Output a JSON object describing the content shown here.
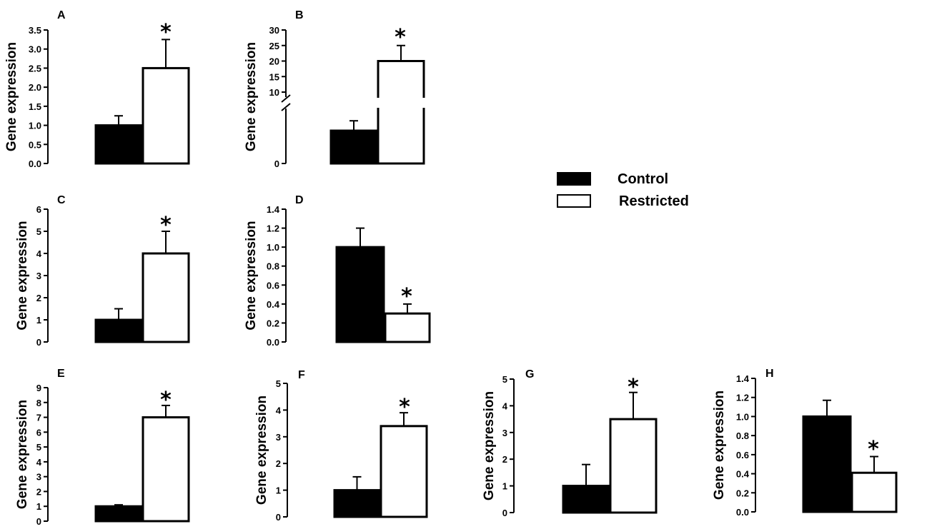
{
  "chart_data": [
    {
      "panel": "A",
      "type": "bar",
      "ylabel": "Gene expression",
      "categories": [
        "Control",
        "Restricted"
      ],
      "values": [
        1.0,
        2.5
      ],
      "errors": [
        0.25,
        0.75
      ],
      "ylim": [
        0,
        3.5
      ],
      "ticks": [
        "0.0",
        "0.5",
        "1.0",
        "1.5",
        "2.0",
        "2.5",
        "3.0",
        "3.5"
      ],
      "significance": "*"
    },
    {
      "panel": "B",
      "type": "bar",
      "ylabel": "Gene expression",
      "categories": [
        "Control",
        "Restricted"
      ],
      "values": [
        1.0,
        20
      ],
      "errors": [
        0.3,
        5
      ],
      "axis_break": true,
      "ticks": [
        "0",
        "10",
        "15",
        "20",
        "25",
        "30"
      ],
      "significance": "*"
    },
    {
      "panel": "C",
      "type": "bar",
      "ylabel": "Gene expression",
      "categories": [
        "Control",
        "Restricted"
      ],
      "values": [
        1.0,
        4.0
      ],
      "errors": [
        0.5,
        1.0
      ],
      "ylim": [
        0,
        6
      ],
      "ticks": [
        "0",
        "1",
        "2",
        "3",
        "4",
        "5",
        "6"
      ],
      "significance": "*"
    },
    {
      "panel": "D",
      "type": "bar",
      "ylabel": "Gene expression",
      "categories": [
        "Control",
        "Restricted"
      ],
      "values": [
        1.0,
        0.3
      ],
      "errors": [
        0.2,
        0.1
      ],
      "ylim": [
        0,
        1.4
      ],
      "ticks": [
        "0.0",
        "0.2",
        "0.4",
        "0.6",
        "0.8",
        "1.0",
        "1.2",
        "1.4"
      ],
      "significance": "*"
    },
    {
      "panel": "E",
      "type": "bar",
      "ylabel": "Gene expression",
      "categories": [
        "Control",
        "Restricted"
      ],
      "values": [
        1.0,
        7.0
      ],
      "errors": [
        0.1,
        0.8
      ],
      "ylim": [
        0,
        9
      ],
      "ticks": [
        "0",
        "1",
        "2",
        "3",
        "4",
        "5",
        "6",
        "7",
        "8",
        "9"
      ],
      "significance": "*"
    },
    {
      "panel": "F",
      "type": "bar",
      "ylabel": "Gene expression",
      "categories": [
        "Control",
        "Restricted"
      ],
      "values": [
        1.0,
        3.4
      ],
      "errors": [
        0.5,
        0.5
      ],
      "ylim": [
        0,
        5
      ],
      "ticks": [
        "0",
        "1",
        "2",
        "3",
        "4",
        "5"
      ],
      "significance": "*"
    },
    {
      "panel": "G",
      "type": "bar",
      "ylabel": "Gene expression",
      "categories": [
        "Control",
        "Restricted"
      ],
      "values": [
        1.0,
        3.5
      ],
      "errors": [
        0.8,
        1.0
      ],
      "ylim": [
        0,
        5
      ],
      "ticks": [
        "0",
        "1",
        "2",
        "3",
        "4",
        "5"
      ],
      "significance": "*"
    },
    {
      "panel": "H",
      "type": "bar",
      "ylabel": "Gene expression",
      "categories": [
        "Control",
        "Restricted"
      ],
      "values": [
        1.0,
        0.41
      ],
      "errors": [
        0.17,
        0.17
      ],
      "ylim": [
        0,
        1.4
      ],
      "ticks": [
        "0.0",
        "0.2",
        "0.4",
        "0.6",
        "0.8",
        "1.0",
        "1.2",
        "1.4"
      ],
      "significance": "*"
    }
  ],
  "legend": {
    "entries": [
      {
        "label": "Control",
        "color": "#000000"
      },
      {
        "label": "Restricted",
        "color": "#ffffff"
      }
    ]
  }
}
